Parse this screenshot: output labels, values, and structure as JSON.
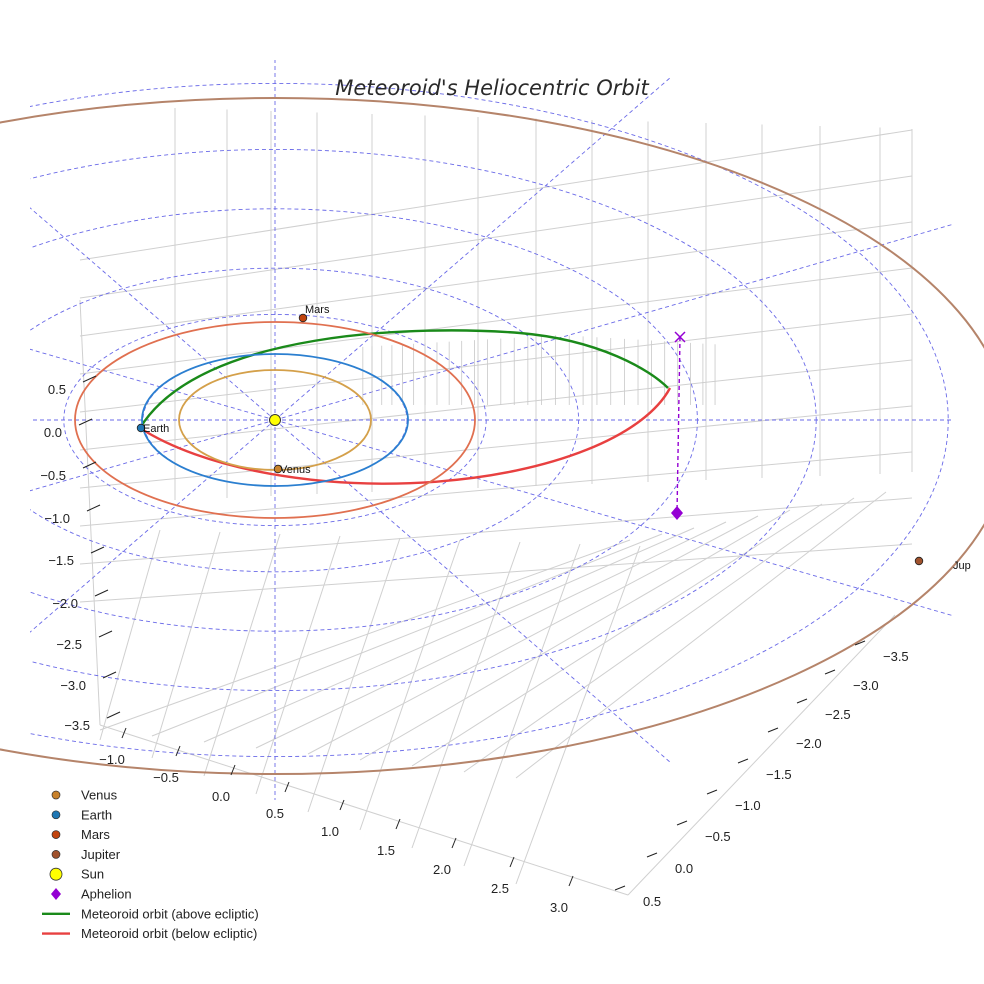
{
  "chart_data": {
    "type": "scatter",
    "title": "Meteoroid's Heliocentric Orbit",
    "projection": "3d",
    "grid": true,
    "legend_position": "bottom-left",
    "x_ticks": [
      "−1.0",
      "−0.5",
      "0.0",
      "0.5",
      "1.0",
      "1.5",
      "2.0",
      "2.5",
      "3.0"
    ],
    "y_ticks": [
      "−3.5",
      "−3.0",
      "−2.5",
      "−2.0",
      "−1.5",
      "−1.0",
      "−0.5",
      "0.0",
      "0.5"
    ],
    "z_ticks": [
      "0.5",
      "0.0",
      "−0.5",
      "−1.0",
      "−1.5",
      "−2.0",
      "−2.5",
      "−3.0",
      "−3.5"
    ],
    "bodies": [
      {
        "name": "Venus",
        "label": "Venus",
        "color": "#c8812a",
        "orbit_color": "#d4a04a",
        "orbit_radius_au": 0.72
      },
      {
        "name": "Earth",
        "label": "Earth",
        "color": "#1f77b4",
        "orbit_color": "#2b7fd0",
        "orbit_radius_au": 1.0
      },
      {
        "name": "Mars",
        "label": "Mars",
        "color": "#c1440e",
        "orbit_color": "#e07050",
        "orbit_radius_au": 1.52
      },
      {
        "name": "Jupiter",
        "label": "Jup",
        "color": "#a0522d",
        "orbit_color": "#b5846a",
        "orbit_radius_au": 5.2
      }
    ],
    "sun": {
      "label": "Sun",
      "color": "#ffff00"
    },
    "aphelion": {
      "label": "Aphelion",
      "color": "#9400d3"
    },
    "meteoroid_orbit": {
      "above_label": "Meteoroid orbit (above ecliptic)",
      "below_label": "Meteoroid orbit (below ecliptic)",
      "above_color": "#1a8a1a",
      "below_color": "#e84040"
    },
    "legend": [
      {
        "label": "Venus",
        "marker": "circle",
        "color": "#c8812a"
      },
      {
        "label": "Earth",
        "marker": "circle",
        "color": "#1f77b4"
      },
      {
        "label": "Mars",
        "marker": "circle",
        "color": "#c1440e"
      },
      {
        "label": "Jupiter",
        "marker": "circle",
        "color": "#a0522d"
      },
      {
        "label": "Sun",
        "marker": "big-circle",
        "color": "#ffff00"
      },
      {
        "label": "Aphelion",
        "marker": "diamond",
        "color": "#9400d3"
      },
      {
        "label": "Meteoroid orbit (above ecliptic)",
        "marker": "line",
        "color": "#1a8a1a"
      },
      {
        "label": "Meteoroid orbit (below ecliptic)",
        "marker": "line",
        "color": "#e84040"
      }
    ]
  }
}
